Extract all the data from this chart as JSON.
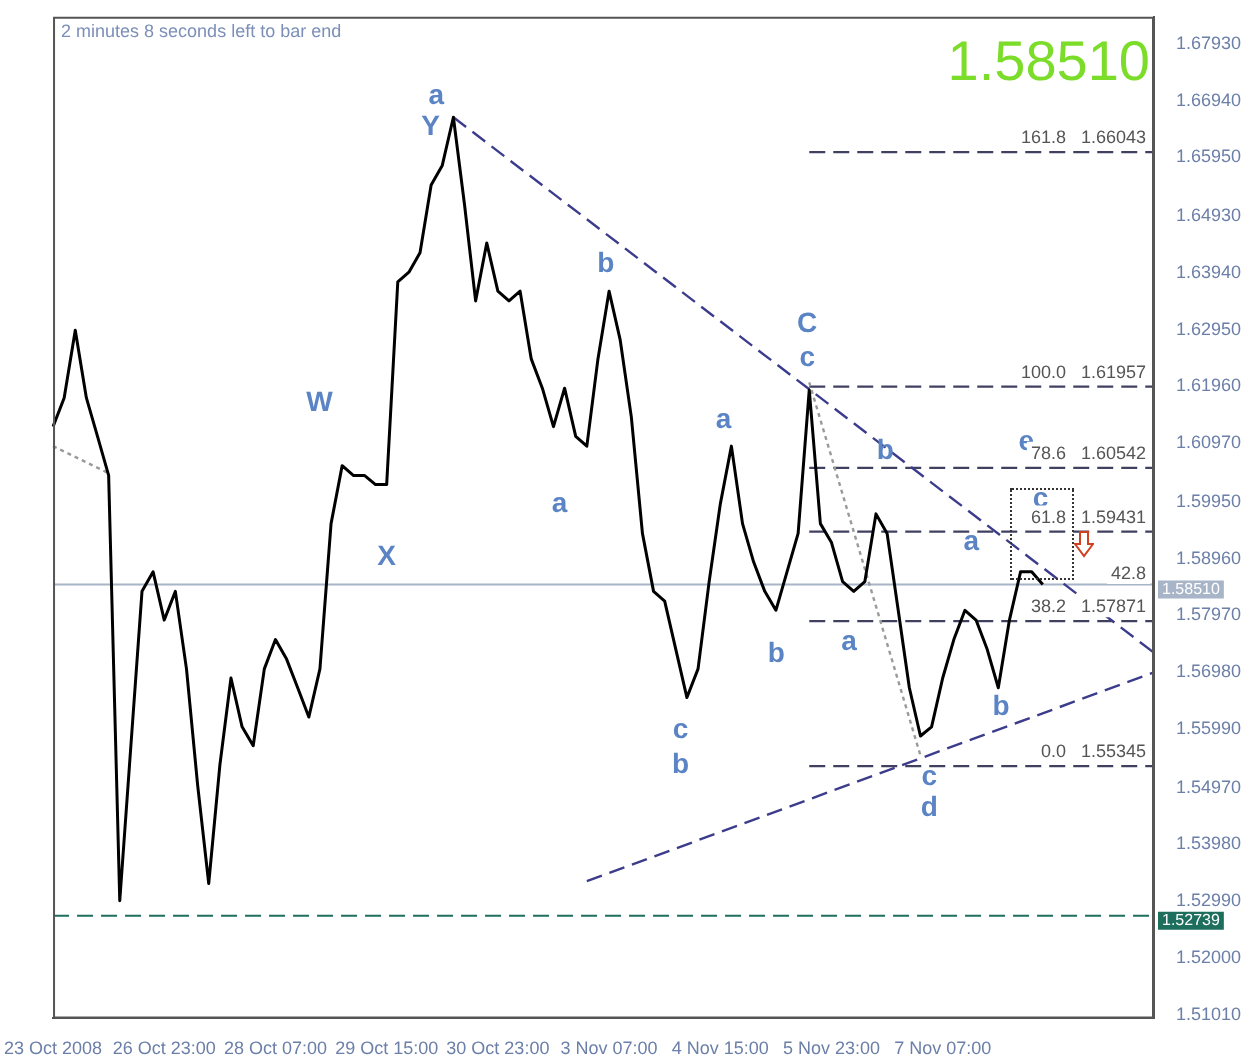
{
  "chart_data": {
    "type": "line",
    "ylim": [
      1.5095,
      1.684
    ],
    "categories": [
      "23 Oct 2008",
      null,
      null,
      null,
      null,
      null,
      null,
      null,
      null,
      null,
      "26 Oct 23:00",
      null,
      null,
      null,
      null,
      null,
      null,
      null,
      null,
      null,
      "28 Oct 07:00",
      null,
      null,
      null,
      null,
      null,
      null,
      null,
      null,
      null,
      "29 Oct 15:00",
      null,
      null,
      null,
      null,
      null,
      null,
      null,
      null,
      null,
      "30 Oct 23:00",
      null,
      null,
      null,
      null,
      null,
      null,
      null,
      null,
      null,
      "3 Nov 07:00",
      null,
      null,
      null,
      null,
      null,
      null,
      null,
      null,
      null,
      "4 Nov 15:00",
      null,
      null,
      null,
      null,
      null,
      null,
      null,
      null,
      null,
      "5 Nov 23:00",
      null,
      null,
      null,
      null,
      null,
      null,
      null,
      null,
      null,
      "7 Nov 07:00",
      null,
      null,
      null,
      null,
      null,
      null,
      null,
      null,
      null,
      null,
      null,
      null,
      null,
      null,
      null,
      null,
      null,
      null,
      null
    ],
    "yticks": [
      {
        "value": 1.6793,
        "label": "1.67930"
      },
      {
        "value": 1.6694,
        "label": "1.66940"
      },
      {
        "value": 1.6595,
        "label": "1.65950"
      },
      {
        "value": 1.6493,
        "label": "1.64930"
      },
      {
        "value": 1.6394,
        "label": "1.63940"
      },
      {
        "value": 1.6295,
        "label": "1.62950"
      },
      {
        "value": 1.6196,
        "label": "1.61960"
      },
      {
        "value": 1.6097,
        "label": "1.60970"
      },
      {
        "value": 1.5995,
        "label": "1.59950"
      },
      {
        "value": 1.5896,
        "label": "1.58960"
      },
      {
        "value": 1.5797,
        "label": "1.57970"
      },
      {
        "value": 1.5698,
        "label": "1.56980"
      },
      {
        "value": 1.5599,
        "label": "1.55990"
      },
      {
        "value": 1.5497,
        "label": "1.54970"
      },
      {
        "value": 1.5398,
        "label": "1.53980"
      },
      {
        "value": 1.5299,
        "label": "1.52990"
      },
      {
        "value": 1.52,
        "label": "1.52000"
      },
      {
        "value": 1.5101,
        "label": "1.51010"
      }
    ],
    "grid": false,
    "legend": false,
    "marker": "none",
    "ref_lines": [
      {
        "axis": "y",
        "value": 1.5851,
        "label": "1.58510",
        "color": "#a8b4c8",
        "line_style": "solid"
      },
      {
        "axis": "y",
        "value": 1.52739,
        "label": "1.52739",
        "color": "#1e6e5e",
        "line_style": "dashed"
      }
    ],
    "annotations": [
      "2 minutes 8 seconds left to bar end",
      "1.58510",
      "a",
      "Y",
      "W",
      "X",
      "b",
      "a",
      "c",
      "b",
      "a",
      "b",
      "C",
      "c",
      "b",
      "a",
      "c",
      "d",
      "a",
      "b",
      "e",
      "c",
      {
        "text": "42.8",
        "y": 1.5845
      },
      {
        "text": "161.8   1.66043",
        "y": 1.66043
      },
      {
        "text": "100.0   1.61957",
        "y": 1.61957
      },
      {
        "text": "78.6   1.60542",
        "y": 1.60542
      },
      {
        "text": "61.8   1.59431",
        "y": 1.59431
      },
      {
        "text": "38.2   1.57871",
        "y": 1.57871
      },
      {
        "text": "0.0   1.55345",
        "y": 1.55345
      }
    ],
    "series": [
      {
        "color": "#000000",
        "line_style": "solid",
        "values": [
          1.6126,
          1.6176,
          1.6294,
          1.6176,
          1.6109,
          1.6041,
          1.53,
          1.557,
          1.5839,
          1.5873,
          1.5789,
          1.5839,
          1.5704,
          1.5502,
          1.533,
          1.5536,
          1.5688,
          1.5603,
          1.557,
          1.5704,
          1.5755,
          1.5721,
          1.5671,
          1.562,
          1.5704,
          1.5957,
          1.6058,
          1.6041,
          1.6041,
          1.6025,
          1.6025,
          1.6378,
          1.6395,
          1.6429,
          1.6547,
          1.6581,
          1.6665,
          1.6513,
          1.6345,
          1.6446,
          1.6362,
          1.6345,
          1.6362,
          1.6244,
          1.6193,
          1.6126,
          1.6193,
          1.6109,
          1.6092,
          1.6244,
          1.6362,
          1.6277,
          1.6143,
          1.594,
          1.5839,
          1.5822,
          1.5738,
          1.5654,
          1.5704,
          1.5856,
          1.5991,
          1.6092,
          1.5957,
          1.589,
          1.5839,
          1.5806,
          1.5873,
          1.594,
          1.619,
          1.5957,
          1.5924,
          1.5856,
          1.5839,
          1.5856,
          1.5974,
          1.594,
          1.5806,
          1.5671,
          1.5587,
          1.5603,
          1.5688,
          1.5755,
          1.5806,
          1.5789,
          1.5738,
          1.5671,
          1.5789,
          1.5873,
          1.5873,
          1.5851,
          null,
          null,
          null,
          null,
          null,
          null,
          null,
          null,
          null,
          null
        ]
      },
      {
        "color": "#3c3c8c",
        "line_style": "dashed",
        "values": [
          null,
          null,
          null,
          null,
          null,
          null,
          null,
          null,
          null,
          null,
          null,
          null,
          null,
          null,
          null,
          null,
          null,
          null,
          null,
          null,
          null,
          null,
          null,
          null,
          null,
          null,
          null,
          null,
          null,
          null,
          null,
          null,
          null,
          null,
          null,
          null,
          1.6665,
          null,
          null,
          null,
          null,
          null,
          null,
          null,
          null,
          null,
          null,
          null,
          null,
          null,
          null,
          null,
          null,
          null,
          null,
          null,
          null,
          null,
          null,
          null,
          null,
          null,
          null,
          null,
          null,
          null,
          null,
          null,
          null,
          null,
          null,
          null,
          null,
          null,
          null,
          null,
          null,
          null,
          null,
          null,
          null,
          null,
          null,
          null,
          null,
          null,
          null,
          null,
          null,
          null,
          null,
          null,
          null,
          null,
          null,
          null,
          null,
          null,
          null,
          1.5732
        ]
      },
      {
        "color": "#3c3c8c",
        "line_style": "dashed",
        "values": [
          null,
          null,
          null,
          null,
          null,
          null,
          null,
          null,
          null,
          null,
          null,
          null,
          null,
          null,
          null,
          null,
          null,
          null,
          null,
          null,
          null,
          null,
          null,
          null,
          null,
          null,
          null,
          null,
          null,
          null,
          null,
          null,
          null,
          null,
          null,
          null,
          null,
          null,
          null,
          null,
          null,
          null,
          null,
          null,
          null,
          null,
          null,
          null,
          1.5334,
          null,
          null,
          null,
          null,
          null,
          null,
          null,
          null,
          null,
          null,
          null,
          null,
          null,
          null,
          null,
          null,
          null,
          null,
          null,
          null,
          null,
          null,
          null,
          null,
          null,
          null,
          null,
          null,
          null,
          null,
          null,
          null,
          null,
          null,
          null,
          null,
          null,
          null,
          null,
          null,
          null,
          null,
          null,
          null,
          null,
          null,
          null,
          null,
          null,
          null,
          1.5698
        ]
      },
      {
        "color": "#9a9a9a",
        "line_style": "dotted",
        "values": [
          null,
          null,
          null,
          null,
          null,
          null,
          null,
          null,
          null,
          null,
          null,
          null,
          null,
          null,
          null,
          null,
          null,
          null,
          null,
          null,
          null,
          null,
          null,
          null,
          null,
          null,
          null,
          null,
          null,
          null,
          null,
          null,
          null,
          null,
          null,
          null,
          null,
          null,
          null,
          null,
          null,
          null,
          null,
          null,
          null,
          null,
          null,
          null,
          null,
          null,
          null,
          null,
          null,
          null,
          null,
          null,
          null,
          null,
          null,
          null,
          null,
          null,
          null,
          null,
          null,
          null,
          null,
          null,
          1.6203,
          null,
          null,
          null,
          null,
          null,
          null,
          null,
          null,
          null,
          1.5553,
          null,
          null,
          null,
          null,
          null,
          null,
          null,
          null,
          null,
          null,
          null,
          null,
          null,
          null,
          null,
          null,
          null,
          null,
          null,
          null,
          null
        ]
      },
      {
        "color": "#9a9a9a",
        "line_style": "dotted",
        "values": [
          1.6092,
          null,
          null,
          null,
          null,
          1.6045,
          null,
          null,
          null,
          null,
          null,
          null,
          null,
          null,
          null,
          null,
          null,
          null,
          null,
          null,
          null,
          null,
          null,
          null,
          null,
          null,
          null,
          null,
          null,
          null,
          null,
          null,
          null,
          null,
          null,
          null,
          null,
          null,
          null,
          null,
          null,
          null,
          null,
          null,
          null,
          null,
          null,
          null,
          null,
          null,
          null,
          null,
          null,
          null,
          null,
          null,
          null,
          null,
          null,
          null,
          null,
          null,
          null,
          null,
          null,
          null,
          null,
          null,
          null,
          null,
          null,
          null,
          null,
          null,
          null,
          null,
          null,
          null,
          null,
          null,
          null,
          null,
          null,
          null,
          null,
          null,
          null,
          null,
          null,
          null,
          null,
          null,
          null,
          null,
          null,
          null,
          null,
          null,
          null,
          null
        ]
      },
      {
        "color": "#404060",
        "line_style": "dashed",
        "values": [
          null,
          null,
          null,
          null,
          null,
          null,
          null,
          null,
          null,
          null,
          null,
          null,
          null,
          null,
          null,
          null,
          null,
          null,
          null,
          null,
          null,
          null,
          null,
          null,
          null,
          null,
          null,
          null,
          null,
          null,
          null,
          null,
          null,
          null,
          null,
          null,
          null,
          null,
          null,
          null,
          null,
          null,
          null,
          null,
          null,
          null,
          null,
          null,
          null,
          null,
          null,
          null,
          null,
          null,
          null,
          null,
          null,
          null,
          null,
          null,
          null,
          null,
          null,
          null,
          null,
          null,
          null,
          null,
          1.66043,
          null,
          null,
          null,
          null,
          null,
          null,
          null,
          null,
          null,
          null,
          null,
          null,
          null,
          null,
          null,
          null,
          null,
          null,
          null,
          null,
          null,
          null,
          null,
          null,
          null,
          null,
          null,
          null,
          null,
          null,
          1.66043
        ]
      },
      {
        "color": "#404060",
        "line_style": "dashed",
        "values": [
          null,
          null,
          null,
          null,
          null,
          null,
          null,
          null,
          null,
          null,
          null,
          null,
          null,
          null,
          null,
          null,
          null,
          null,
          null,
          null,
          null,
          null,
          null,
          null,
          null,
          null,
          null,
          null,
          null,
          null,
          null,
          null,
          null,
          null,
          null,
          null,
          null,
          null,
          null,
          null,
          null,
          null,
          null,
          null,
          null,
          null,
          null,
          null,
          null,
          null,
          null,
          null,
          null,
          null,
          null,
          null,
          null,
          null,
          null,
          null,
          null,
          null,
          null,
          null,
          null,
          null,
          null,
          null,
          1.61957,
          null,
          null,
          null,
          null,
          null,
          null,
          null,
          null,
          null,
          null,
          null,
          null,
          null,
          null,
          null,
          null,
          null,
          null,
          null,
          null,
          null,
          null,
          null,
          null,
          null,
          null,
          null,
          null,
          null,
          null,
          1.61957
        ]
      },
      {
        "color": "#404060",
        "line_style": "dashed",
        "values": [
          null,
          null,
          null,
          null,
          null,
          null,
          null,
          null,
          null,
          null,
          null,
          null,
          null,
          null,
          null,
          null,
          null,
          null,
          null,
          null,
          null,
          null,
          null,
          null,
          null,
          null,
          null,
          null,
          null,
          null,
          null,
          null,
          null,
          null,
          null,
          null,
          null,
          null,
          null,
          null,
          null,
          null,
          null,
          null,
          null,
          null,
          null,
          null,
          null,
          null,
          null,
          null,
          null,
          null,
          null,
          null,
          null,
          null,
          null,
          null,
          null,
          null,
          null,
          null,
          null,
          null,
          null,
          null,
          1.60542,
          null,
          null,
          null,
          null,
          null,
          null,
          null,
          null,
          null,
          null,
          null,
          null,
          null,
          null,
          null,
          null,
          null,
          null,
          null,
          null,
          null,
          null,
          null,
          null,
          null,
          null,
          null,
          null,
          null,
          null,
          1.60542
        ]
      },
      {
        "color": "#404060",
        "line_style": "dashed",
        "values": [
          null,
          null,
          null,
          null,
          null,
          null,
          null,
          null,
          null,
          null,
          null,
          null,
          null,
          null,
          null,
          null,
          null,
          null,
          null,
          null,
          null,
          null,
          null,
          null,
          null,
          null,
          null,
          null,
          null,
          null,
          null,
          null,
          null,
          null,
          null,
          null,
          null,
          null,
          null,
          null,
          null,
          null,
          null,
          null,
          null,
          null,
          null,
          null,
          null,
          null,
          null,
          null,
          null,
          null,
          null,
          null,
          null,
          null,
          null,
          null,
          null,
          null,
          null,
          null,
          null,
          null,
          null,
          null,
          1.59431,
          null,
          null,
          null,
          null,
          null,
          null,
          null,
          null,
          null,
          null,
          null,
          null,
          null,
          null,
          null,
          null,
          null,
          null,
          null,
          null,
          null,
          null,
          null,
          null,
          null,
          null,
          null,
          null,
          null,
          null,
          1.59431
        ]
      },
      {
        "color": "#404060",
        "line_style": "dashed",
        "values": [
          null,
          null,
          null,
          null,
          null,
          null,
          null,
          null,
          null,
          null,
          null,
          null,
          null,
          null,
          null,
          null,
          null,
          null,
          null,
          null,
          null,
          null,
          null,
          null,
          null,
          null,
          null,
          null,
          null,
          null,
          null,
          null,
          null,
          null,
          null,
          null,
          null,
          null,
          null,
          null,
          null,
          null,
          null,
          null,
          null,
          null,
          null,
          null,
          null,
          null,
          null,
          null,
          null,
          null,
          null,
          null,
          null,
          null,
          null,
          null,
          null,
          null,
          null,
          null,
          null,
          null,
          null,
          null,
          1.57871,
          null,
          null,
          null,
          null,
          null,
          null,
          null,
          null,
          null,
          null,
          null,
          null,
          null,
          null,
          null,
          null,
          null,
          null,
          null,
          null,
          null,
          null,
          null,
          null,
          null,
          null,
          null,
          null,
          null,
          null,
          1.57871
        ]
      },
      {
        "color": "#404060",
        "line_style": "dashed",
        "values": [
          null,
          null,
          null,
          null,
          null,
          null,
          null,
          null,
          null,
          null,
          null,
          null,
          null,
          null,
          null,
          null,
          null,
          null,
          null,
          null,
          null,
          null,
          null,
          null,
          null,
          null,
          null,
          null,
          null,
          null,
          null,
          null,
          null,
          null,
          null,
          null,
          null,
          null,
          null,
          null,
          null,
          null,
          null,
          null,
          null,
          null,
          null,
          null,
          null,
          null,
          null,
          null,
          null,
          null,
          null,
          null,
          null,
          null,
          null,
          null,
          null,
          null,
          null,
          null,
          null,
          null,
          null,
          null,
          1.55345,
          null,
          null,
          null,
          null,
          null,
          null,
          null,
          null,
          null,
          null,
          null,
          null,
          null,
          null,
          null,
          null,
          null,
          null,
          null,
          null,
          null,
          null,
          null,
          null,
          null,
          null,
          null,
          null,
          null,
          null,
          1.55345
        ]
      }
    ]
  }
}
